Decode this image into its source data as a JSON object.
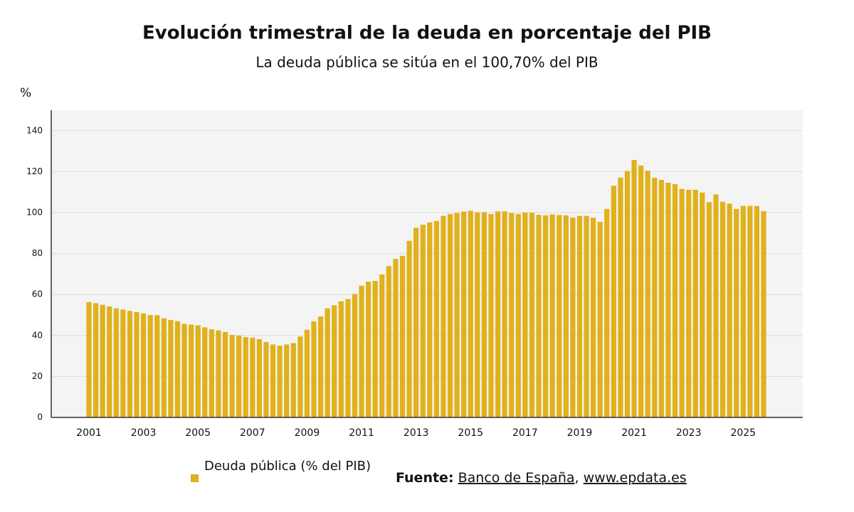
{
  "chart_data": {
    "type": "bar",
    "title": "Evolución trimestral de la deuda en porcentaje del PIB",
    "subtitle": "La deuda pública se sitúa en el 100,70% del PIB",
    "y_label": "%",
    "categories": [
      "2001",
      null,
      null,
      null,
      null,
      null,
      null,
      null,
      "2003",
      null,
      null,
      null,
      null,
      null,
      null,
      null,
      "2005",
      null,
      null,
      null,
      null,
      null,
      null,
      null,
      "2007",
      null,
      null,
      null,
      null,
      null,
      null,
      null,
      "2009",
      null,
      null,
      null,
      null,
      null,
      null,
      null,
      "2011",
      null,
      null,
      null,
      null,
      null,
      null,
      null,
      "2013",
      null,
      null,
      null,
      null,
      null,
      null,
      null,
      "2015",
      null,
      null,
      null,
      null,
      null,
      null,
      null,
      "2017",
      null,
      null,
      null,
      null,
      null,
      null,
      null,
      "2019",
      null,
      null,
      null,
      null,
      null,
      null,
      null,
      "2021",
      null,
      null,
      null,
      null,
      null,
      null,
      null,
      "2023",
      null,
      null,
      null,
      null,
      null,
      null,
      null,
      "2025",
      null,
      null,
      null
    ],
    "series": [
      {
        "name": "Deuda pública (% del PIB)",
        "color": "#e0b11c",
        "values": [
          56.3,
          55.8,
          55.0,
          54.2,
          53.3,
          52.7,
          52.0,
          51.4,
          50.8,
          50.0,
          49.9,
          48.4,
          47.6,
          47.0,
          45.7,
          45.3,
          45.0,
          44.0,
          43.0,
          42.5,
          41.7,
          40.3,
          40.0,
          39.2,
          38.9,
          38.2,
          36.8,
          35.6,
          35.0,
          35.6,
          36.3,
          39.5,
          42.8,
          46.9,
          49.3,
          53.3,
          54.7,
          56.7,
          57.8,
          60.3,
          64.3,
          66.3,
          66.6,
          69.8,
          73.9,
          77.4,
          78.9,
          86.2,
          92.6,
          94.1,
          95.2,
          95.9,
          98.4,
          99.3,
          99.8,
          100.5,
          100.9,
          100.2,
          100.2,
          99.3,
          100.6,
          100.6,
          99.8,
          99.3,
          100.0,
          100.0,
          98.9,
          98.7,
          99.1,
          98.8,
          98.7,
          97.6,
          98.4,
          98.4,
          97.5,
          95.5,
          101.8,
          113.1,
          117.1,
          120.3,
          125.7,
          123.0,
          120.4,
          117.0,
          116.0,
          114.6,
          113.9,
          111.6,
          111.1,
          111.2,
          109.8,
          105.1,
          108.9,
          105.3,
          104.4,
          101.8,
          103.3,
          103.3,
          103.2,
          100.7
        ]
      }
    ],
    "ylim": [
      0,
      150
    ],
    "yticks": [
      0,
      20,
      40,
      60,
      80,
      100,
      120,
      140
    ],
    "grid": true,
    "legend": "bottom-left",
    "source": {
      "label": "Fuente:",
      "name": "Banco de España",
      "separator": ",",
      "url": "www.epdata.es"
    }
  }
}
